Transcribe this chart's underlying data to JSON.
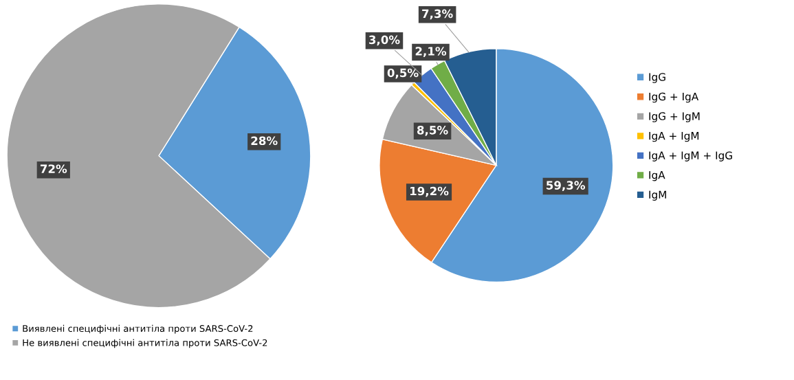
{
  "chart_data": [
    {
      "type": "pie",
      "categories": [
        "Виявлені специфічні антитіла проти SARS-CoV-2",
        "Не виявлені специфічні антитіла проти SARS-CoV-2"
      ],
      "values": [
        28,
        72
      ],
      "colors": [
        "#5b9bd5",
        "#a5a5a5"
      ],
      "value_labels": [
        "28%",
        "72%"
      ],
      "legend": "bottom left"
    },
    {
      "type": "pie",
      "categories": [
        "IgG",
        "IgG + IgA",
        "IgG + IgM",
        "IgA + IgM",
        "IgA + IgM + IgG",
        "IgA",
        "IgM"
      ],
      "values": [
        59.3,
        19.2,
        8.5,
        0.5,
        3.0,
        2.1,
        7.3
      ],
      "colors": [
        "#5b9bd5",
        "#ed7d31",
        "#a5a5a5",
        "#ffc000",
        "#4472c4",
        "#70ad47",
        "#255e91"
      ],
      "value_labels": [
        "59,3%",
        "19,2%",
        "8,5%",
        "0,5%",
        "3,0%",
        "2,1%",
        "7,3%"
      ],
      "legend": "right"
    }
  ]
}
